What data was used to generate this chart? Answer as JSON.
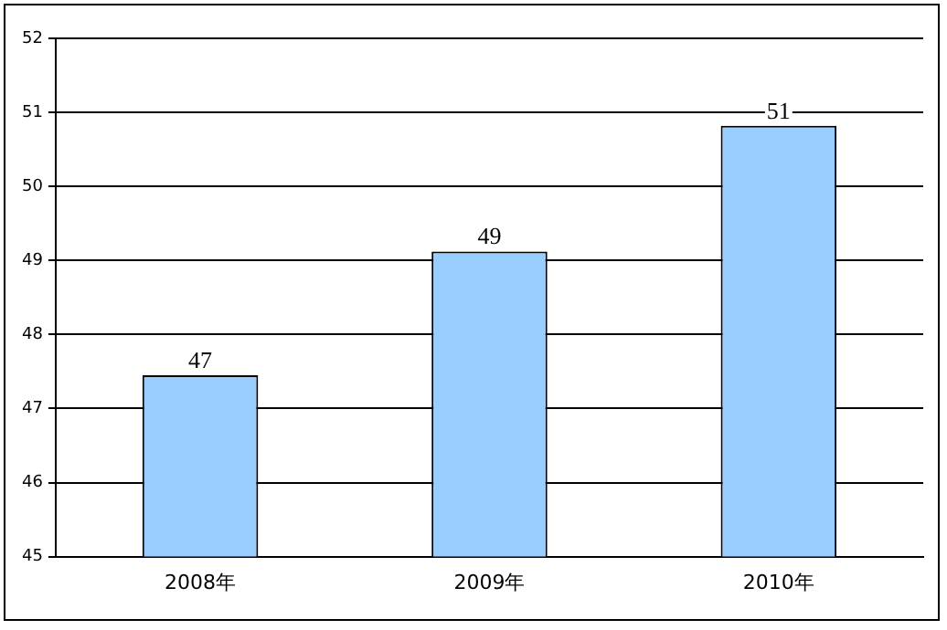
{
  "chart_data": {
    "type": "bar",
    "categories": [
      "2008年",
      "2009年",
      "2010年"
    ],
    "values": [
      47.45,
      49.12,
      50.82
    ],
    "value_labels": [
      "47",
      "49",
      "51"
    ],
    "color": "#99ccff",
    "ylim": [
      45,
      52
    ],
    "yticks": [
      45,
      46,
      47,
      48,
      49,
      50,
      51,
      52
    ],
    "grid": "y",
    "legend": false
  }
}
